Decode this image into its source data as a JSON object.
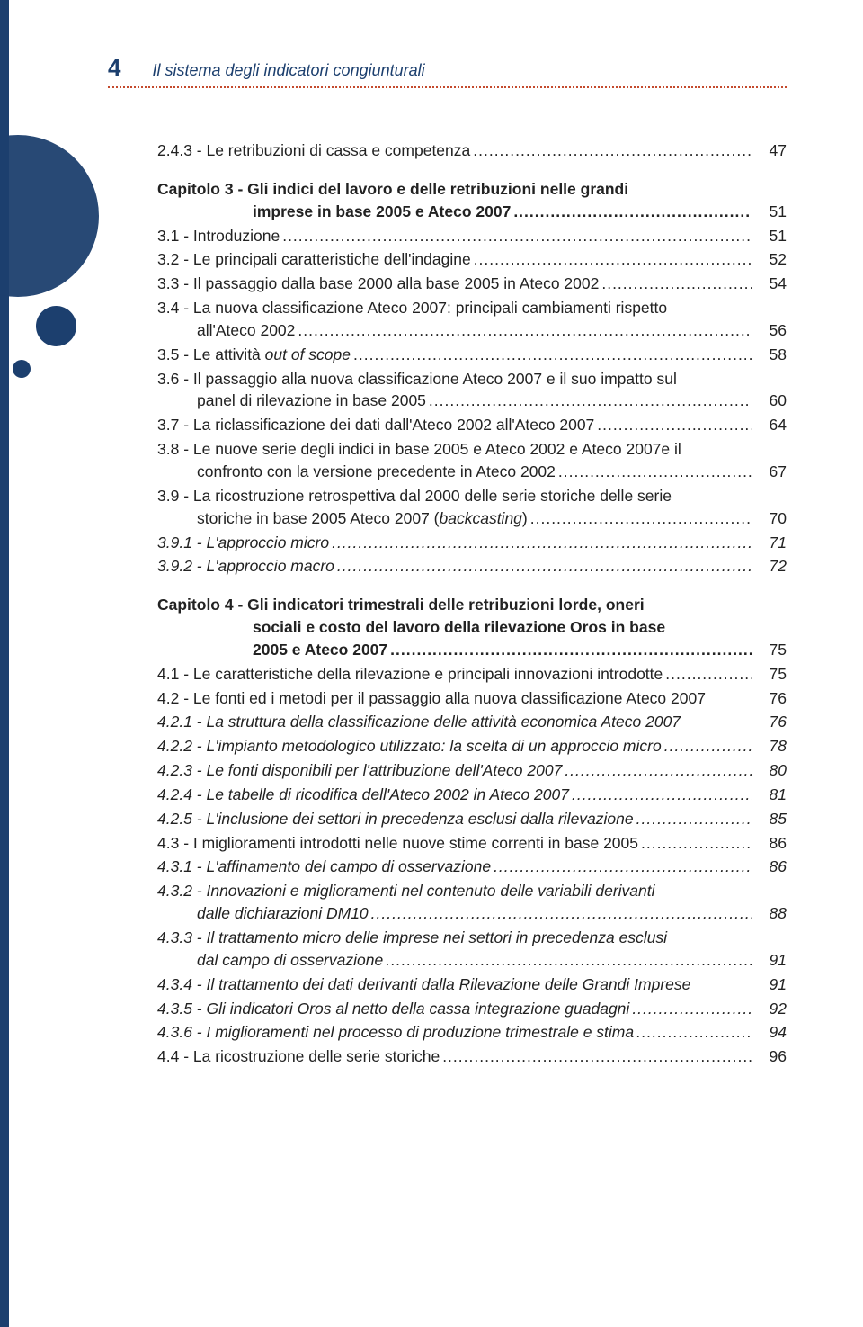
{
  "header": {
    "pageNumber": "4",
    "runningTitle": "Il sistema degli indicatori congiunturali"
  },
  "colors": {
    "brand": "#1c3f6e",
    "rule": "#c44a2d",
    "text": "#222222",
    "bg": "#ffffff"
  },
  "toc": {
    "preEntry": {
      "label": "2.4.3 - Le retribuzioni di cassa e competenza",
      "page": "47"
    },
    "chapter3": {
      "titleLines": [
        "Capitolo 3 - Gli indici del lavoro e delle retribuzioni nelle grandi",
        "imprese in base 2005 e Ateco 2007"
      ],
      "page": "51",
      "entries": [
        {
          "label": "3.1 - Introduzione",
          "page": "51"
        },
        {
          "label": "3.2 - Le principali caratteristiche dell'indagine",
          "page": "52"
        },
        {
          "label": "3.3 - Il passaggio dalla base 2000 alla base 2005 in Ateco 2002",
          "page": "54"
        },
        {
          "lines": [
            "3.4 - La nuova classificazione Ateco 2007: principali cambiamenti rispetto",
            "all'Ateco 2002"
          ],
          "page": "56"
        },
        {
          "label": "3.5 - Le attività out of scope",
          "labelParts": [
            {
              "t": "3.5 - Le attività ",
              "i": false
            },
            {
              "t": "out of scope",
              "i": true
            }
          ],
          "page": "58"
        },
        {
          "lines": [
            "3.6 - Il passaggio alla nuova classificazione Ateco 2007 e il suo impatto sul",
            "panel di rilevazione in base 2005"
          ],
          "page": "60"
        },
        {
          "label": "3.7 - La riclassificazione dei dati dall'Ateco 2002 all'Ateco 2007",
          "page": "64"
        },
        {
          "lines": [
            "3.8 - Le nuove serie degli indici in base 2005 e Ateco 2002 e Ateco 2007e il",
            "confronto con la versione precedente in Ateco 2002"
          ],
          "page": "67"
        },
        {
          "lines": [
            "3.9 - La ricostruzione retrospettiva dal 2000 delle serie storiche delle serie",
            "storiche in base 2005 Ateco 2007 (backcasting)"
          ],
          "lastParts": [
            {
              "t": "storiche in base 2005 Ateco 2007 (",
              "i": false
            },
            {
              "t": "backcasting",
              "i": true
            },
            {
              "t": ")",
              "i": false
            }
          ],
          "page": "70"
        },
        {
          "label": "3.9.1 - L'approccio micro",
          "italic": true,
          "page": "71"
        },
        {
          "label": "3.9.2 - L'approccio macro",
          "italic": true,
          "page": "72"
        }
      ]
    },
    "chapter4": {
      "titleLines": [
        "Capitolo 4 - Gli indicatori trimestrali delle retribuzioni lorde, oneri",
        "sociali e costo del lavoro della rilevazione Oros in base",
        "2005 e Ateco 2007"
      ],
      "page": "75",
      "entries": [
        {
          "label": "4.1 - Le caratteristiche della rilevazione e principali innovazioni introdotte",
          "page": "75"
        },
        {
          "label": "4.2 - Le fonti ed i metodi per il passaggio alla nuova classificazione Ateco 2007",
          "page": "76",
          "nodots": true
        },
        {
          "label": "4.2.1 - La struttura della classificazione delle attività economica Ateco 2007",
          "italic": true,
          "page": "76",
          "nodots": true
        },
        {
          "label": "4.2.2 - L'impianto metodologico utilizzato: la scelta di un approccio micro",
          "italic": true,
          "page": "78"
        },
        {
          "label": "4.2.3 - Le fonti disponibili per l'attribuzione dell'Ateco 2007",
          "italic": true,
          "page": "80"
        },
        {
          "label": "4.2.4 - Le tabelle di ricodifica dell'Ateco 2002 in Ateco 2007",
          "italic": true,
          "page": "81"
        },
        {
          "label": "4.2.5 - L'inclusione dei settori in precedenza esclusi dalla rilevazione",
          "italic": true,
          "page": "85"
        },
        {
          "label": "4.3 - I miglioramenti introdotti nelle nuove stime correnti in base 2005",
          "page": "86"
        },
        {
          "label": "4.3.1 - L'affinamento del campo di osservazione",
          "italic": true,
          "page": "86"
        },
        {
          "lines": [
            "4.3.2 - Innovazioni e miglioramenti nel contenuto delle variabili derivanti",
            "dalle dichiarazioni DM10"
          ],
          "italic": true,
          "page": "88"
        },
        {
          "lines": [
            "4.3.3 - Il trattamento micro delle imprese nei settori in precedenza esclusi",
            "dal campo di osservazione"
          ],
          "italic": true,
          "page": "91"
        },
        {
          "label": "4.3.4 - Il trattamento dei dati derivanti dalla Rilevazione delle Grandi Imprese",
          "italic": true,
          "page": "91",
          "nodots": true
        },
        {
          "label": "4.3.5 - Gli indicatori Oros al netto della cassa integrazione guadagni",
          "italic": true,
          "page": "92"
        },
        {
          "label": "4.3.6 - I miglioramenti nel processo di produzione trimestrale e stima",
          "italic": true,
          "page": "94"
        },
        {
          "label": "4.4 - La ricostruzione delle serie storiche",
          "page": "96"
        }
      ]
    }
  }
}
